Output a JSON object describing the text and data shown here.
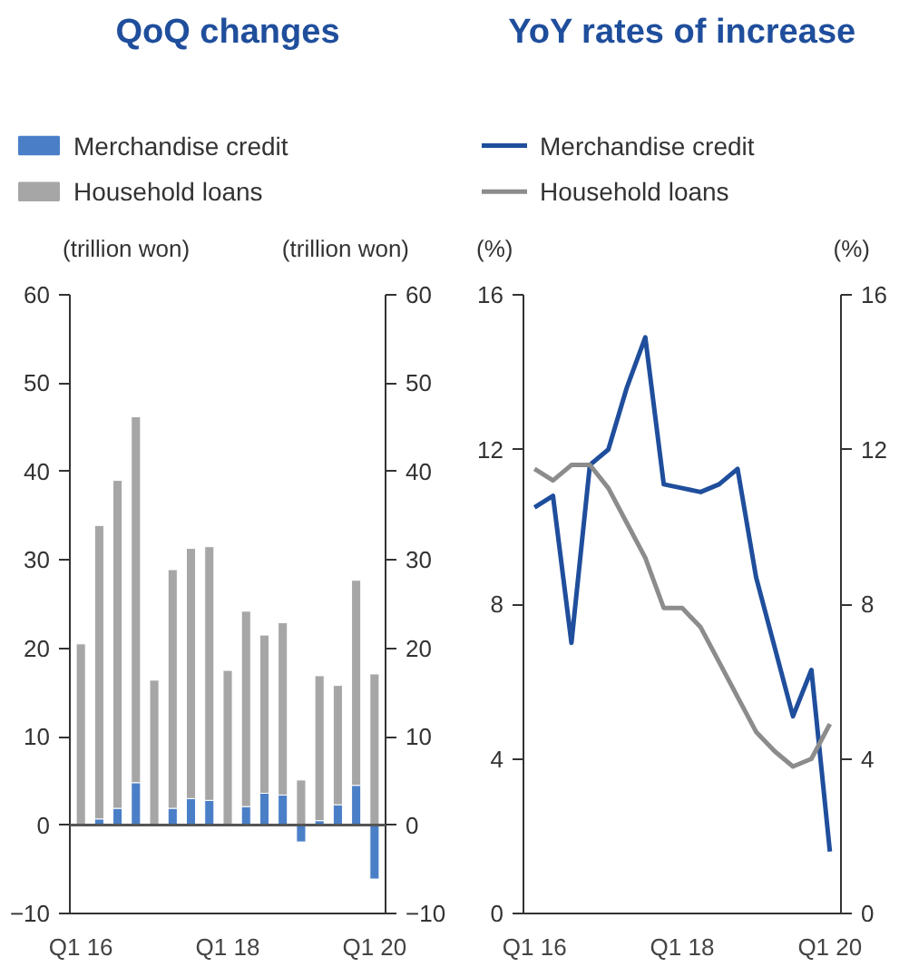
{
  "chart_data": [
    {
      "type": "bar",
      "title": "QoQ changes",
      "ylabel": "(trillion won)",
      "y2label": "(trillion won)",
      "stacked": true,
      "categories": [
        "Q1 16",
        null,
        null,
        null,
        null,
        null,
        null,
        null,
        "Q1 18",
        null,
        null,
        null,
        null,
        null,
        null,
        null,
        "Q1 20"
      ],
      "series": [
        {
          "name": "Merchandise credit",
          "color": "#4a7fc8",
          "values": [
            null,
            0.7,
            1.9,
            4.8,
            null,
            1.9,
            3.0,
            2.8,
            null,
            2.1,
            3.6,
            3.4,
            -1.9,
            0.5,
            2.3,
            4.5,
            -6.1
          ]
        },
        {
          "name": "Household loans",
          "color": "#a6a6a6",
          "values": [
            20.5,
            33.2,
            37.1,
            41.4,
            16.4,
            27.0,
            28.3,
            28.7,
            17.5,
            22.1,
            17.9,
            19.5,
            5.1,
            16.4,
            13.5,
            23.2,
            17.1
          ]
        }
      ],
      "ylim": [
        -10,
        60
      ],
      "yticks": [
        -10,
        0,
        10,
        20,
        30,
        40,
        50,
        60
      ],
      "y2lim": [
        -10,
        60
      ],
      "y2ticks": [
        -10,
        0,
        10,
        20,
        30,
        40,
        50,
        60
      ],
      "ref_lines": [
        {
          "axis": "y",
          "value": 0,
          "color": "#555555"
        }
      ],
      "grid": false,
      "legend": "top"
    },
    {
      "type": "line",
      "title": "YoY rates of increase",
      "ylabel": "(%)",
      "y2label": "(%)",
      "categories": [
        "Q1 16",
        null,
        null,
        null,
        null,
        null,
        null,
        null,
        "Q1 18",
        null,
        null,
        null,
        null,
        null,
        null,
        null,
        "Q1 20"
      ],
      "series": [
        {
          "name": "Merchandise credit",
          "color": "#1f4e9c",
          "values": [
            10.5,
            10.8,
            7.0,
            11.6,
            12.0,
            13.6,
            14.9,
            11.1,
            11.0,
            10.9,
            11.1,
            11.5,
            8.7,
            6.9,
            5.1,
            6.3,
            1.6
          ]
        },
        {
          "name": "Household loans",
          "color": "#8c8c8c",
          "values": [
            11.5,
            11.2,
            11.6,
            11.6,
            11.0,
            10.1,
            9.2,
            7.9,
            7.9,
            7.4,
            6.5,
            5.6,
            4.7,
            4.2,
            3.8,
            4.0,
            4.9
          ]
        }
      ],
      "ylim": [
        0,
        16
      ],
      "yticks": [
        0,
        4,
        8,
        12,
        16
      ],
      "y2lim": [
        0,
        16
      ],
      "y2ticks": [
        0,
        4,
        8,
        12,
        16
      ],
      "grid": false,
      "legend": "top",
      "marker": "none",
      "line_style": "solid"
    }
  ]
}
